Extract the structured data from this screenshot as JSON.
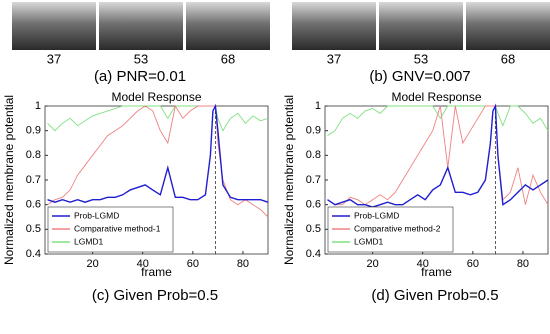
{
  "chart_data": [
    {
      "type": "line",
      "caption_top": "(a)  PNR=0.01",
      "frames": [
        37,
        53,
        68
      ],
      "title": "Model Response",
      "ylabel": "Normalized membrane potential",
      "xlabel": "frame",
      "caption": "(c)  Given Prob=0.5",
      "xlim": [
        1,
        90
      ],
      "ylim": [
        0.4,
        1
      ],
      "xticks": [
        20,
        40,
        60,
        80
      ],
      "yticks": [
        0.4,
        0.5,
        0.6,
        0.7,
        0.8,
        0.9,
        1
      ],
      "vline": 69,
      "legend": "lower-left",
      "x": [
        2,
        5,
        8,
        11,
        14,
        17,
        20,
        23,
        26,
        29,
        32,
        35,
        38,
        41,
        44,
        47,
        50,
        53,
        56,
        59,
        62,
        65,
        67,
        68,
        69,
        70,
        72,
        75,
        78,
        81,
        84,
        87,
        90
      ],
      "series": [
        {
          "name": "Prob-LGMD",
          "color": "#1f1fd0",
          "values": [
            0.62,
            0.61,
            0.62,
            0.61,
            0.62,
            0.61,
            0.62,
            0.62,
            0.63,
            0.63,
            0.64,
            0.66,
            0.67,
            0.68,
            0.66,
            0.64,
            0.75,
            0.63,
            0.63,
            0.62,
            0.62,
            0.64,
            0.8,
            0.98,
            1.0,
            0.9,
            0.68,
            0.63,
            0.62,
            0.62,
            0.62,
            0.62,
            0.61
          ]
        },
        {
          "name": "Comparative method-1",
          "color": "#f08080",
          "values": [
            0.6,
            0.62,
            0.63,
            0.66,
            0.72,
            0.76,
            0.8,
            0.84,
            0.88,
            0.9,
            0.92,
            0.95,
            0.98,
            1.0,
            0.98,
            0.9,
            0.85,
            1.0,
            0.95,
            0.98,
            1.0,
            1.0,
            1.0,
            1.0,
            1.0,
            0.85,
            0.7,
            0.62,
            0.6,
            0.62,
            0.6,
            0.58,
            0.55
          ]
        },
        {
          "name": "LGMD1",
          "color": "#80e080",
          "values": [
            0.93,
            0.9,
            0.93,
            0.95,
            0.92,
            0.94,
            0.96,
            0.97,
            0.98,
            0.99,
            1,
            1,
            1,
            1,
            1,
            1,
            0.95,
            1,
            1,
            1,
            1,
            1,
            1,
            1,
            1,
            0.95,
            0.9,
            0.95,
            0.97,
            0.93,
            0.96,
            0.94,
            0.95
          ]
        }
      ]
    },
    {
      "type": "line",
      "caption_top": "(b)  GNV=0.007",
      "frames": [
        37,
        53,
        68
      ],
      "title": "Model Response",
      "ylabel": "Normalized membrane potential",
      "xlabel": "frame",
      "caption": "(d)  Given Prob=0.5",
      "xlim": [
        1,
        90
      ],
      "ylim": [
        0.4,
        1
      ],
      "xticks": [
        20,
        40,
        60,
        80
      ],
      "yticks": [
        0.4,
        0.5,
        0.6,
        0.7,
        0.8,
        0.9,
        1
      ],
      "vline": 69,
      "legend": "lower-left",
      "x": [
        2,
        5,
        8,
        11,
        14,
        17,
        20,
        23,
        26,
        29,
        32,
        35,
        38,
        41,
        44,
        47,
        50,
        53,
        56,
        59,
        62,
        65,
        67,
        68,
        69,
        70,
        72,
        75,
        78,
        81,
        84,
        87,
        90
      ],
      "series": [
        {
          "name": "Prob-LGMD",
          "color": "#1f1fd0",
          "values": [
            0.62,
            0.6,
            0.61,
            0.62,
            0.6,
            0.6,
            0.59,
            0.6,
            0.61,
            0.6,
            0.6,
            0.62,
            0.64,
            0.62,
            0.66,
            0.68,
            0.75,
            0.65,
            0.65,
            0.64,
            0.65,
            0.7,
            0.85,
            0.98,
            1.0,
            0.8,
            0.6,
            0.62,
            0.65,
            0.68,
            0.66,
            0.68,
            0.7
          ]
        },
        {
          "name": "Comparative method-2",
          "color": "#f08080",
          "values": [
            0.62,
            0.6,
            0.6,
            0.63,
            0.62,
            0.6,
            0.62,
            0.64,
            0.62,
            0.65,
            0.7,
            0.75,
            0.8,
            0.85,
            0.9,
            1.0,
            0.75,
            1.0,
            0.85,
            0.9,
            0.95,
            1.0,
            1.0,
            1.0,
            1.0,
            0.8,
            0.62,
            0.65,
            0.75,
            0.6,
            0.72,
            0.65,
            0.6
          ]
        },
        {
          "name": "LGMD1",
          "color": "#80e080",
          "values": [
            0.88,
            0.9,
            0.95,
            0.97,
            0.95,
            0.98,
            0.99,
            0.97,
            1,
            1,
            1,
            1,
            1,
            1,
            1,
            0.95,
            1,
            1,
            1,
            1,
            1,
            1,
            1,
            1,
            1,
            0.97,
            0.92,
            1,
            1,
            0.97,
            0.93,
            0.95,
            0.9
          ]
        }
      ]
    }
  ]
}
